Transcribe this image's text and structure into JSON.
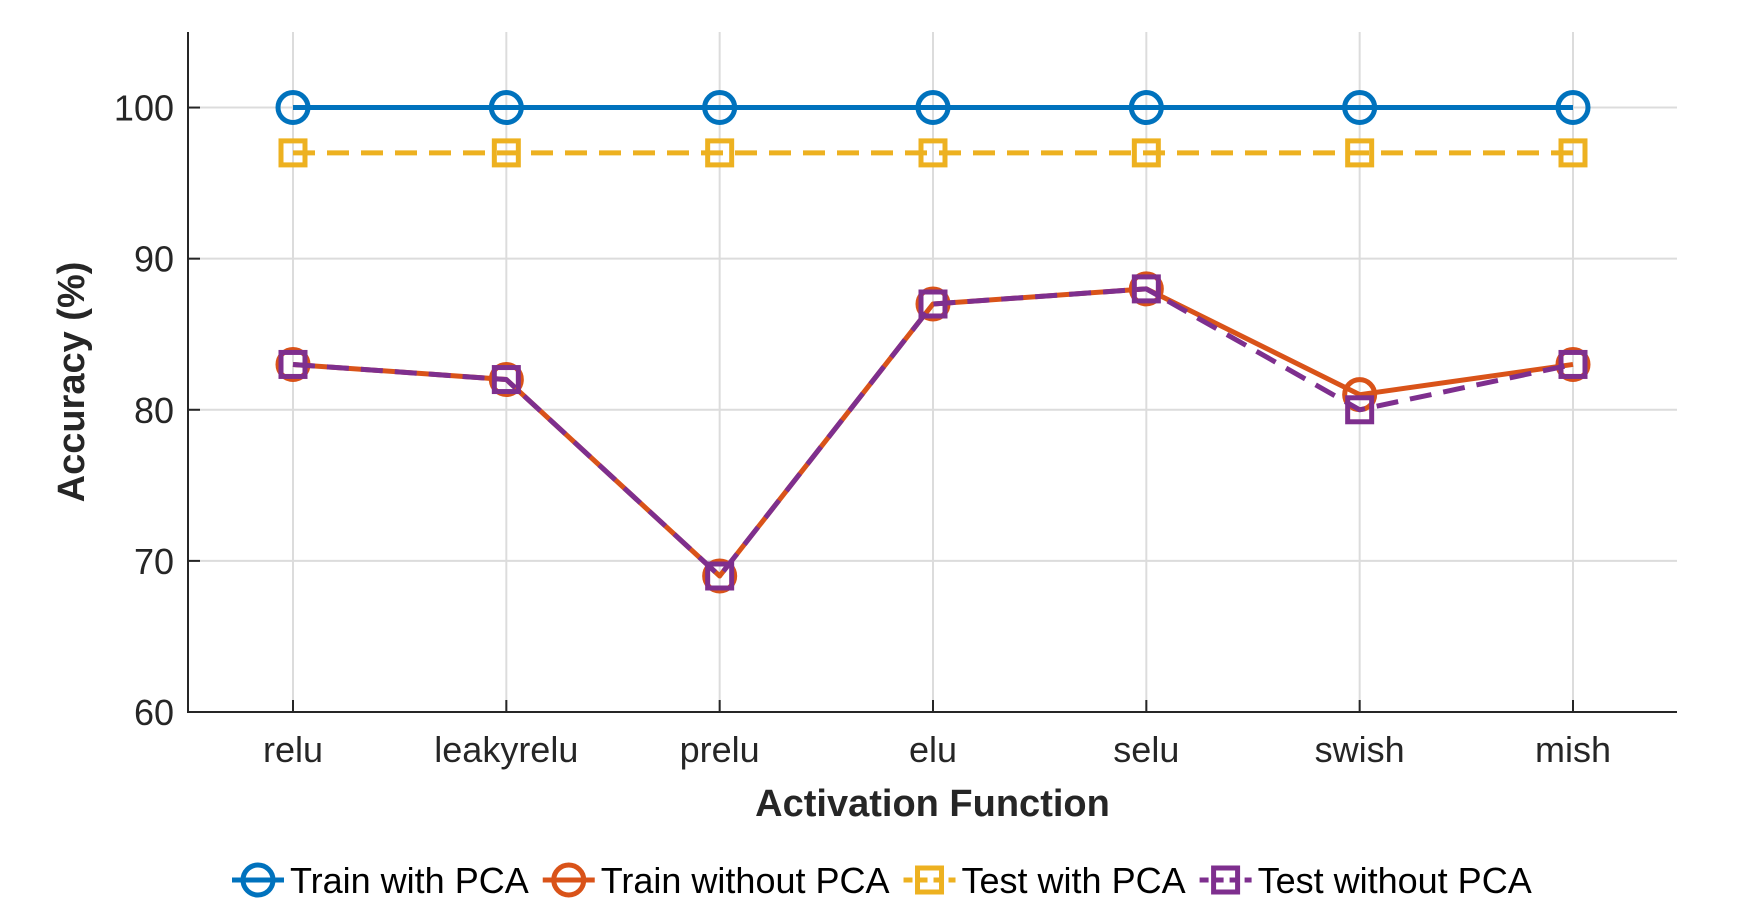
{
  "chart_data": {
    "type": "line",
    "title": "",
    "xlabel": "Activation Function",
    "ylabel": "Accuracy (%)",
    "categories": [
      "relu",
      "leakyrelu",
      "prelu",
      "elu",
      "selu",
      "swish",
      "mish"
    ],
    "ylim": [
      60,
      105
    ],
    "yticks": [
      60,
      70,
      80,
      90,
      100
    ],
    "grid": true,
    "legend_position": "bottom",
    "series": [
      {
        "name": "Train with PCA",
        "values": [
          100,
          100,
          100,
          100,
          100,
          100,
          100
        ],
        "color": "#0072BD",
        "linestyle": "solid",
        "marker": "circle"
      },
      {
        "name": "Train without PCA",
        "values": [
          83,
          82,
          69,
          87,
          88,
          81,
          83
        ],
        "color": "#D95319",
        "linestyle": "solid",
        "marker": "circle"
      },
      {
        "name": "Test with PCA",
        "values": [
          97,
          97,
          97,
          97,
          97,
          97,
          97
        ],
        "color": "#EDB120",
        "linestyle": "dashed",
        "marker": "square"
      },
      {
        "name": "Test without PCA",
        "values": [
          83,
          82,
          69,
          87,
          88,
          80,
          83
        ],
        "color": "#7E2F8E",
        "linestyle": "dashed",
        "marker": "square"
      }
    ]
  }
}
